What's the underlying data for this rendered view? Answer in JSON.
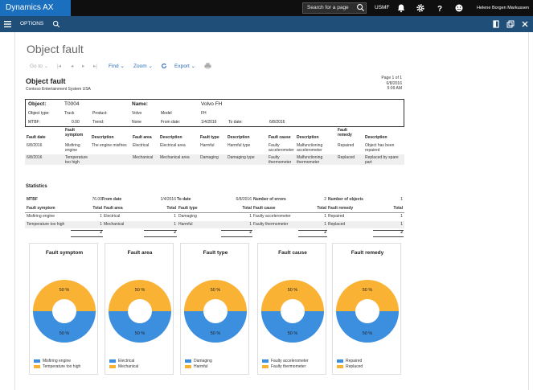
{
  "app": {
    "name": "Dynamics AX",
    "search_placeholder": "Search for a page",
    "company": "USMF",
    "user": "Helene Borgen Markussen"
  },
  "cmdbar": {
    "options_label": "OPTIONS"
  },
  "page": {
    "title": "Object fault"
  },
  "toolbar": {
    "goto": "Go to",
    "find": "Find",
    "zoom": "Zoom",
    "export": "Export"
  },
  "colors": {
    "blue": "#3c8fde",
    "orange": "#f9b233",
    "brand": "#1a6fbf",
    "cmdbar": "#1f4e79"
  },
  "report": {
    "title": "Object fault",
    "company": "Contoso Entertainment System USA",
    "page_label": "Page 1 of 1",
    "date": "6/8/2016",
    "time": "5:09 AM",
    "object": {
      "object_label": "Object:",
      "object_value": "T0004",
      "name_label": "Name:",
      "name_value": "Volvo FH",
      "type_label": "Object type:",
      "type_value": "Truck",
      "product_label": "Product:",
      "product_value": "Volvo",
      "model_label": "Model",
      "model_value": "FH",
      "mtbf_label": "MTBF:",
      "mtbf_value": "0.00",
      "trend_label": "Trend:",
      "trend_value": "None",
      "from_label": "From date:",
      "from_value": "1/4/2016",
      "to_label": "To date:",
      "to_value": "6/8/2016"
    },
    "fault_headers": [
      "Fault date",
      "Fault\nsymptom",
      "Description",
      "Fault area",
      "Description",
      "Fault type",
      "Description",
      "Fault cause",
      "Description",
      "Fault\nremedy",
      "Description"
    ],
    "fault_rows": [
      [
        "6/8/2016",
        "Misfiring\nengine",
        "The engine misfires",
        "Electrical",
        "Electrical area",
        "Harmful",
        "Harmful type",
        "Faulty\naccelerometer",
        "Malfunctioning\naccelerometer",
        "Repaired",
        "Object has been\nrepaired"
      ],
      [
        "6/8/2016",
        "Temperature\ntoo high",
        "",
        "Mechanical",
        "Mechanical area",
        "Damaging",
        "Damaging type",
        "Faulty\nthermometer",
        "Malfunctioning\nthermometer",
        "Replaced",
        "Replaced by spare\npart"
      ]
    ],
    "statistics": {
      "title": "Statistics",
      "mtbf_label": "MTBF",
      "mtbf_value": "76.00",
      "from_label": "From date",
      "from_value": "1/4/2016",
      "to_label": "To date",
      "to_value": "6/8/2016",
      "errors_label": "Number of errors",
      "errors_value": "2",
      "objects_label": "Number of objects",
      "objects_value": "1",
      "headers": [
        "Fault symptom",
        "Total",
        "Fault area",
        "Total",
        "Fault type",
        "Total",
        "Fault cause",
        "Total",
        "Fault remedy",
        "Total"
      ],
      "rows": [
        [
          "Misfiring engine",
          "1",
          "Electrical",
          "1",
          "Damaging",
          "1",
          "Faulty accelerometer",
          "1",
          "Repaired",
          "1"
        ],
        [
          "Temperature too high",
          "1",
          "Mechanical",
          "1",
          "Harmful",
          "1",
          "Faulty thermometer",
          "1",
          "Replaced",
          "1"
        ]
      ],
      "totals": [
        "2",
        "2",
        "2",
        "2",
        "2"
      ]
    }
  },
  "chart_data": [
    {
      "type": "pie",
      "title": "Fault symptom",
      "categories": [
        "Misfiring engine",
        "Temperature too high"
      ],
      "values": [
        50,
        50
      ],
      "labels": [
        "50 %",
        "50 %"
      ]
    },
    {
      "type": "pie",
      "title": "Fault area",
      "categories": [
        "Electrical",
        "Mechanical"
      ],
      "values": [
        50,
        50
      ],
      "labels": [
        "50 %",
        "50 %"
      ]
    },
    {
      "type": "pie",
      "title": "Fault type",
      "categories": [
        "Damaging",
        "Harmful"
      ],
      "values": [
        50,
        50
      ],
      "labels": [
        "50 %",
        "50 %"
      ]
    },
    {
      "type": "pie",
      "title": "Fault cause",
      "categories": [
        "Faulty accelerometer",
        "Faulty thermometer"
      ],
      "values": [
        50,
        50
      ],
      "labels": [
        "50 %",
        "50 %"
      ]
    },
    {
      "type": "pie",
      "title": "Fault remedy",
      "categories": [
        "Repaired",
        "Replaced"
      ],
      "values": [
        50,
        50
      ],
      "labels": [
        "50 %",
        "50 %"
      ]
    }
  ]
}
